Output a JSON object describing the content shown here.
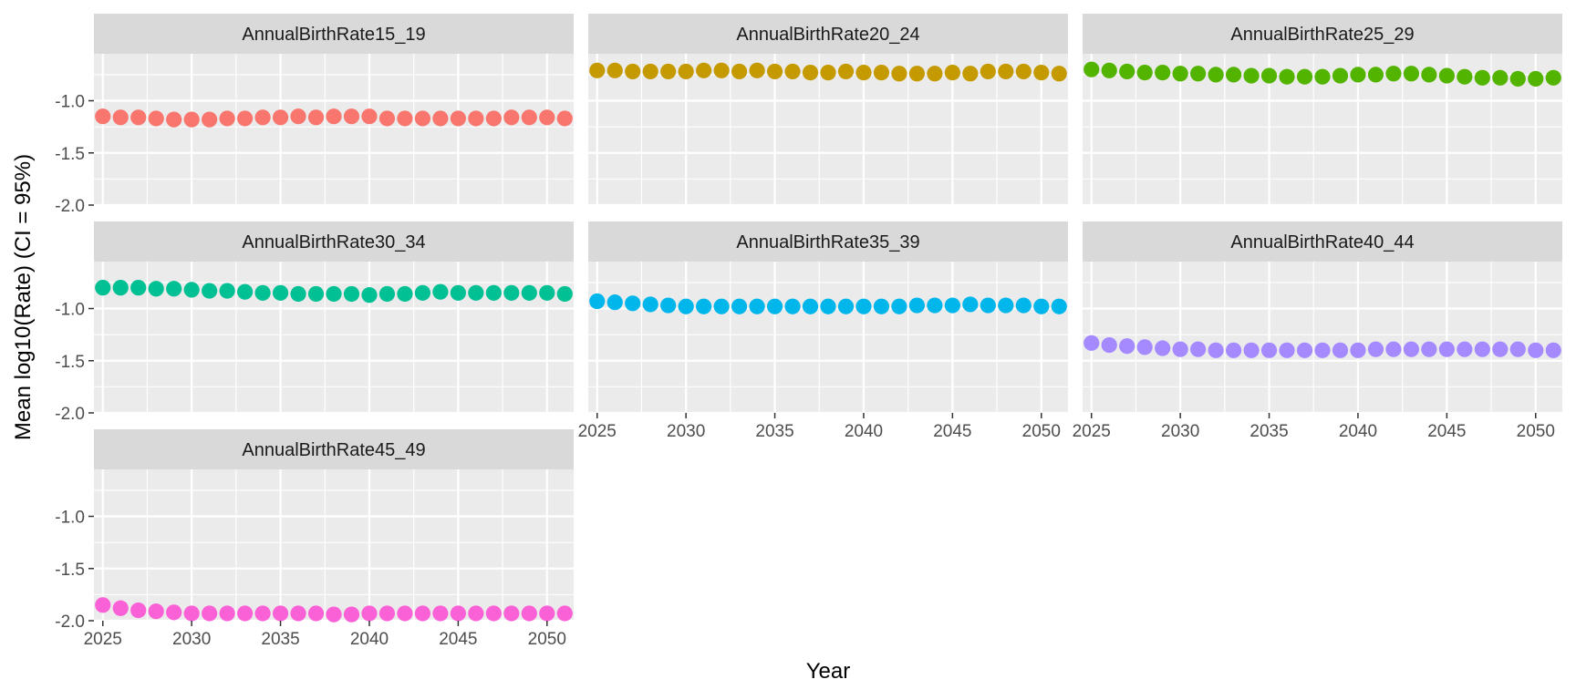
{
  "chart_data": {
    "type": "scatter",
    "xlabel": "Year",
    "ylabel": "Mean log10(Rate) (CI = 95%)",
    "xlim": [
      2024.5,
      2051.5
    ],
    "ylim": [
      -2.0,
      -0.55
    ],
    "x_ticks": [
      2025,
      2030,
      2035,
      2040,
      2045,
      2050
    ],
    "y_ticks": [
      -1.0,
      -1.5,
      -2.0
    ],
    "y_tick_labels": [
      "-1.0",
      "-1.5",
      "-2.0"
    ],
    "x_tick_labels": [
      "2025",
      "2030",
      "2035",
      "2040",
      "2045",
      "2050"
    ],
    "x": [
      2025,
      2026,
      2027,
      2028,
      2029,
      2030,
      2031,
      2032,
      2033,
      2034,
      2035,
      2036,
      2037,
      2038,
      2039,
      2040,
      2041,
      2042,
      2043,
      2044,
      2045,
      2046,
      2047,
      2048,
      2049,
      2050,
      2051
    ],
    "legend": "none",
    "facets": [
      {
        "name": "AnnualBirthRate15_19",
        "color": "#F8766D",
        "values": [
          -1.15,
          -1.16,
          -1.16,
          -1.17,
          -1.18,
          -1.18,
          -1.18,
          -1.17,
          -1.17,
          -1.16,
          -1.16,
          -1.15,
          -1.16,
          -1.15,
          -1.15,
          -1.15,
          -1.17,
          -1.17,
          -1.17,
          -1.17,
          -1.17,
          -1.17,
          -1.17,
          -1.16,
          -1.16,
          -1.16,
          -1.17
        ]
      },
      {
        "name": "AnnualBirthRate20_24",
        "color": "#C49A00",
        "values": [
          -0.71,
          -0.71,
          -0.72,
          -0.72,
          -0.72,
          -0.72,
          -0.71,
          -0.71,
          -0.72,
          -0.71,
          -0.72,
          -0.72,
          -0.73,
          -0.73,
          -0.72,
          -0.73,
          -0.73,
          -0.74,
          -0.74,
          -0.74,
          -0.73,
          -0.74,
          -0.72,
          -0.72,
          -0.72,
          -0.73,
          -0.74
        ]
      },
      {
        "name": "AnnualBirthRate25_29",
        "color": "#53B400",
        "values": [
          -0.7,
          -0.71,
          -0.72,
          -0.73,
          -0.73,
          -0.74,
          -0.74,
          -0.75,
          -0.75,
          -0.76,
          -0.76,
          -0.77,
          -0.77,
          -0.77,
          -0.76,
          -0.75,
          -0.75,
          -0.74,
          -0.74,
          -0.75,
          -0.76,
          -0.77,
          -0.78,
          -0.78,
          -0.79,
          -0.79,
          -0.78
        ]
      },
      {
        "name": "AnnualBirthRate30_34",
        "color": "#00C094",
        "values": [
          -0.8,
          -0.8,
          -0.8,
          -0.81,
          -0.81,
          -0.82,
          -0.83,
          -0.83,
          -0.84,
          -0.85,
          -0.85,
          -0.86,
          -0.86,
          -0.86,
          -0.86,
          -0.87,
          -0.86,
          -0.86,
          -0.85,
          -0.84,
          -0.85,
          -0.85,
          -0.85,
          -0.85,
          -0.85,
          -0.85,
          -0.86
        ]
      },
      {
        "name": "AnnualBirthRate35_39",
        "color": "#00B6EB",
        "values": [
          -0.93,
          -0.94,
          -0.95,
          -0.96,
          -0.97,
          -0.98,
          -0.98,
          -0.98,
          -0.98,
          -0.98,
          -0.98,
          -0.98,
          -0.98,
          -0.98,
          -0.98,
          -0.98,
          -0.98,
          -0.98,
          -0.97,
          -0.97,
          -0.97,
          -0.96,
          -0.97,
          -0.97,
          -0.97,
          -0.98,
          -0.98
        ]
      },
      {
        "name": "AnnualBirthRate40_44",
        "color": "#A58AFF",
        "values": [
          -1.33,
          -1.35,
          -1.36,
          -1.37,
          -1.38,
          -1.39,
          -1.39,
          -1.4,
          -1.4,
          -1.4,
          -1.4,
          -1.4,
          -1.4,
          -1.4,
          -1.4,
          -1.4,
          -1.39,
          -1.39,
          -1.39,
          -1.39,
          -1.39,
          -1.39,
          -1.39,
          -1.39,
          -1.39,
          -1.4,
          -1.4
        ]
      },
      {
        "name": "AnnualBirthRate45_49",
        "color": "#FB61D7",
        "values": [
          -1.85,
          -1.88,
          -1.9,
          -1.91,
          -1.92,
          -1.93,
          -1.93,
          -1.93,
          -1.93,
          -1.93,
          -1.93,
          -1.93,
          -1.93,
          -1.94,
          -1.94,
          -1.93,
          -1.93,
          -1.93,
          -1.93,
          -1.93,
          -1.93,
          -1.93,
          -1.93,
          -1.93,
          -1.93,
          -1.93,
          -1.93
        ]
      }
    ]
  }
}
